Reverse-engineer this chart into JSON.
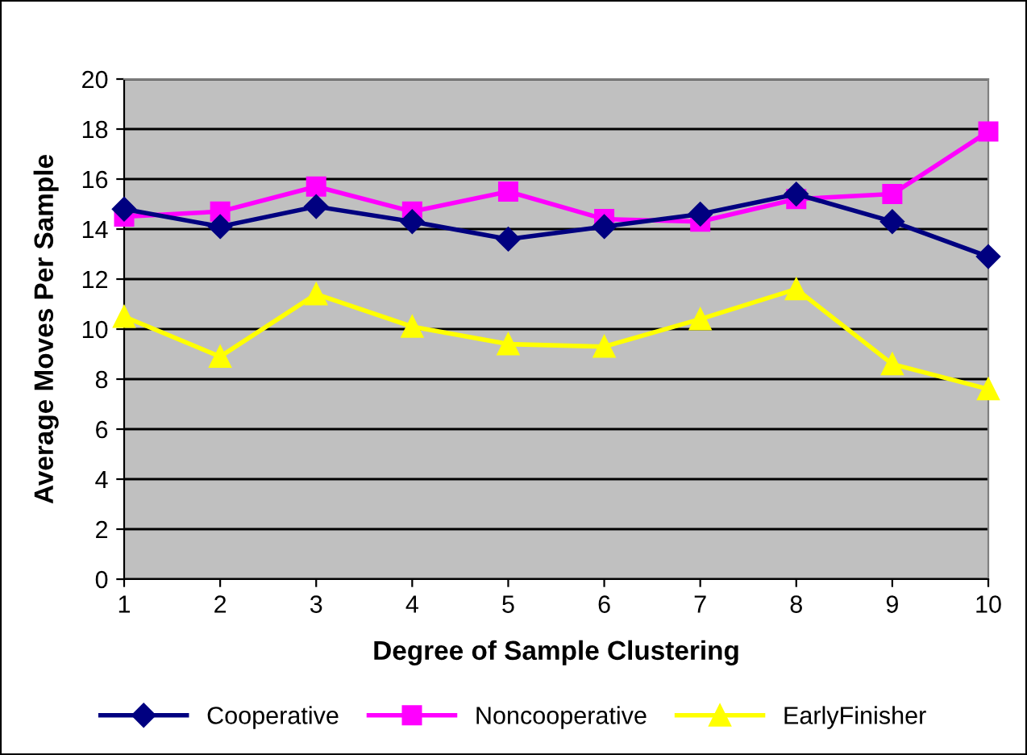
{
  "chart_data": {
    "type": "line",
    "xlabel": "Degree of Sample Clustering",
    "ylabel": "Average Moves Per Sample",
    "x": [
      1,
      2,
      3,
      4,
      5,
      6,
      7,
      8,
      9,
      10
    ],
    "xlim": [
      1,
      10
    ],
    "xticks": [
      1,
      2,
      3,
      4,
      5,
      6,
      7,
      8,
      9,
      10
    ],
    "ylim": [
      0,
      20
    ],
    "yticks": [
      0,
      2,
      4,
      6,
      8,
      10,
      12,
      14,
      16,
      18,
      20
    ],
    "grid": "y",
    "legend": "bottom",
    "line_style": "solid",
    "series": [
      {
        "name": "Cooperative",
        "color": "#000080",
        "marker": "diamond",
        "values": [
          14.8,
          14.1,
          14.9,
          14.3,
          13.6,
          14.1,
          14.6,
          15.4,
          14.3,
          12.9
        ]
      },
      {
        "name": "Noncooperative",
        "color": "#ff00ff",
        "marker": "square",
        "values": [
          14.5,
          14.7,
          15.7,
          14.7,
          15.5,
          14.4,
          14.3,
          15.2,
          15.4,
          17.9
        ]
      },
      {
        "name": "EarlyFinisher",
        "color": "#ffff00",
        "marker": "triangle",
        "values": [
          10.5,
          8.9,
          11.4,
          10.1,
          9.4,
          9.3,
          10.4,
          11.6,
          8.6,
          7.6
        ]
      }
    ]
  }
}
